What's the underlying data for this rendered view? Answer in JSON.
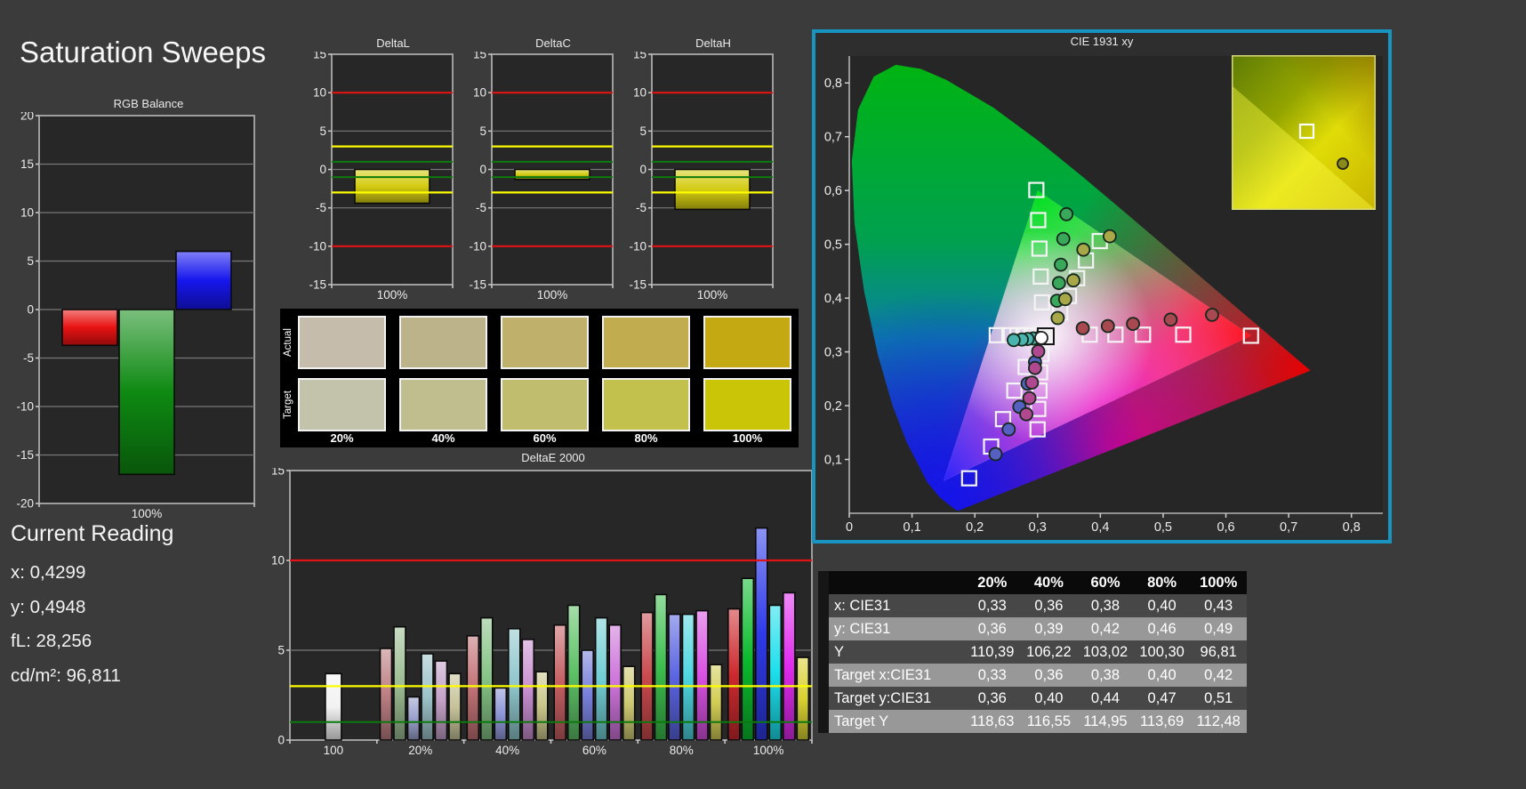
{
  "page": {
    "title": "Saturation Sweeps"
  },
  "current_reading": {
    "title": "Current Reading",
    "lines": [
      {
        "label": "x:",
        "value": "0,4299"
      },
      {
        "label": "y:",
        "value": "0,4948"
      },
      {
        "label": "fL:",
        "value": "28,256"
      },
      {
        "label": "cd/m²:",
        "value": "96,811"
      }
    ]
  },
  "colors": {
    "page_bg": "#3b3b3b",
    "plot_bg": "#272727",
    "plot_border": "#9e9e9e",
    "grid": "#787878",
    "ref_red": "#e01414",
    "ref_yellow": "#fdfd00",
    "ref_green": "#0c7a0c",
    "accent_frame": "#1795c0",
    "panel_black": "#000000"
  },
  "swatches": {
    "row_labels": [
      "Actual",
      "Target"
    ],
    "percent_labels": [
      "20%",
      "40%",
      "60%",
      "80%",
      "100%"
    ],
    "actual": [
      "#c5bcab",
      "#bdb38b",
      "#bfb16c",
      "#c1ad4f",
      "#c4a913"
    ],
    "target": [
      "#c3c3ac",
      "#c0bd8e",
      "#c0bd6f",
      "#c3c14e",
      "#cbc508"
    ]
  },
  "chart_data": [
    {
      "id": "rgb_balance",
      "type": "bar",
      "title": "RGB Balance",
      "ylim": [
        -20,
        20
      ],
      "yticks": [
        20,
        15,
        10,
        5,
        0,
        -5,
        -10,
        -15,
        -20
      ],
      "categories": [
        "100%"
      ],
      "series": [
        {
          "name": "Red",
          "color": "#e81212",
          "values": [
            -3.7
          ]
        },
        {
          "name": "Green",
          "color": "#0e8a12",
          "values": [
            -17
          ]
        },
        {
          "name": "Blue",
          "color": "#1616ee",
          "values": [
            6
          ]
        }
      ]
    },
    {
      "id": "delta_l",
      "type": "bar",
      "title": "DeltaL",
      "ylim": [
        -15,
        15
      ],
      "yticks": [
        15,
        10,
        5,
        0,
        -5,
        -10,
        -15
      ],
      "ref_lines": [
        {
          "v": 10,
          "color": "#e01414"
        },
        {
          "v": -10,
          "color": "#e01414"
        },
        {
          "v": 3,
          "color": "#fdfd00"
        },
        {
          "v": -3,
          "color": "#fdfd00"
        },
        {
          "v": 1,
          "color": "#0c7a0c"
        },
        {
          "v": -1,
          "color": "#0c7a0c"
        }
      ],
      "categories": [
        "100%"
      ],
      "bar_color": "#d4cc12",
      "values": [
        -4.4
      ]
    },
    {
      "id": "delta_c",
      "type": "bar",
      "title": "DeltaC",
      "ylim": [
        -15,
        15
      ],
      "yticks": [
        15,
        10,
        5,
        0,
        -5,
        -10,
        -15
      ],
      "ref_lines": [
        {
          "v": 10,
          "color": "#e01414"
        },
        {
          "v": -10,
          "color": "#e01414"
        },
        {
          "v": 3,
          "color": "#fdfd00"
        },
        {
          "v": -3,
          "color": "#fdfd00"
        },
        {
          "v": 1,
          "color": "#0c7a0c"
        },
        {
          "v": -1,
          "color": "#0c7a0c"
        }
      ],
      "categories": [
        "100%"
      ],
      "bar_color": "#d4cc12",
      "values": [
        -1.3
      ]
    },
    {
      "id": "delta_h",
      "type": "bar",
      "title": "DeltaH",
      "ylim": [
        -15,
        15
      ],
      "yticks": [
        15,
        10,
        5,
        0,
        -5,
        -10,
        -15
      ],
      "ref_lines": [
        {
          "v": 10,
          "color": "#e01414"
        },
        {
          "v": -10,
          "color": "#e01414"
        },
        {
          "v": 3,
          "color": "#fdfd00"
        },
        {
          "v": -3,
          "color": "#fdfd00"
        },
        {
          "v": 1,
          "color": "#0c7a0c"
        },
        {
          "v": -1,
          "color": "#0c7a0c"
        }
      ],
      "categories": [
        "100%"
      ],
      "bar_color": "#d4cc12",
      "values": [
        -5.2
      ]
    },
    {
      "id": "deltae2000",
      "type": "bar",
      "title": "DeltaE 2000",
      "ylim": [
        0,
        15
      ],
      "yticks": [
        15,
        10,
        5,
        0
      ],
      "ref_lines": [
        {
          "v": 10,
          "color": "#e01414"
        },
        {
          "v": 3,
          "color": "#fdfd00"
        },
        {
          "v": 1,
          "color": "#0c7a0c"
        }
      ],
      "groups": [
        {
          "label": "100",
          "bars": [
            {
              "color": "#f2f2f2",
              "value": 3.7
            }
          ]
        },
        {
          "label": "20%",
          "bars": [
            {
              "color": "#bd8084",
              "value": 5.1
            },
            {
              "color": "#9dbd93",
              "value": 6.3
            },
            {
              "color": "#9aa0cc",
              "value": 2.4
            },
            {
              "color": "#9cc3c9",
              "value": 4.8
            },
            {
              "color": "#c3a0c6",
              "value": 4.4
            },
            {
              "color": "#c6c39a",
              "value": 3.7
            }
          ]
        },
        {
          "label": "40%",
          "bars": [
            {
              "color": "#c17276",
              "value": 5.8
            },
            {
              "color": "#85c285",
              "value": 6.8
            },
            {
              "color": "#8e96d6",
              "value": 2.9
            },
            {
              "color": "#8fc6cc",
              "value": 6.2
            },
            {
              "color": "#c88fd0",
              "value": 5.6
            },
            {
              "color": "#c9c68b",
              "value": 3.8
            }
          ]
        },
        {
          "label": "60%",
          "bars": [
            {
              "color": "#c55f63",
              "value": 6.4
            },
            {
              "color": "#5dc167",
              "value": 7.5
            },
            {
              "color": "#7780da",
              "value": 5.0
            },
            {
              "color": "#72cdd4",
              "value": 6.8
            },
            {
              "color": "#cd74da",
              "value": 6.4
            },
            {
              "color": "#cdc972",
              "value": 4.1
            }
          ]
        },
        {
          "label": "80%",
          "bars": [
            {
              "color": "#c94a4e",
              "value": 7.1
            },
            {
              "color": "#3cbf4e",
              "value": 8.1
            },
            {
              "color": "#5a64e0",
              "value": 7.0
            },
            {
              "color": "#4ed6e0",
              "value": 7.0
            },
            {
              "color": "#d851e2",
              "value": 7.2
            },
            {
              "color": "#d2cd55",
              "value": 4.2
            }
          ]
        },
        {
          "label": "100%",
          "bars": [
            {
              "color": "#cc2a2e",
              "value": 7.3
            },
            {
              "color": "#0cbb2e",
              "value": 9.0
            },
            {
              "color": "#2e3ae8",
              "value": 11.8
            },
            {
              "color": "#1cdfec",
              "value": 7.5
            },
            {
              "color": "#e02aee",
              "value": 8.2
            },
            {
              "color": "#d8d232",
              "value": 4.6
            }
          ]
        }
      ]
    },
    {
      "id": "cie1931",
      "type": "scatter",
      "title": "CIE 1931 xy",
      "x_ticks": [
        "0",
        "0,1",
        "0,2",
        "0,3",
        "0,4",
        "0,5",
        "0,6",
        "0,7",
        "0,8"
      ],
      "y_ticks": [
        "0,1",
        "0,2",
        "0,3",
        "0,4",
        "0,5",
        "0,6",
        "0,7",
        "0,8"
      ],
      "gamut_triangle": [
        [
          0.64,
          0.33
        ],
        [
          0.3,
          0.6
        ],
        [
          0.15,
          0.06
        ]
      ],
      "white_point": {
        "target": [
          0.313,
          0.329
        ],
        "measured": [
          0.306,
          0.326
        ]
      },
      "targets": {
        "red": [
          [
            0.383,
            0.332
          ],
          [
            0.424,
            0.332
          ],
          [
            0.468,
            0.332
          ],
          [
            0.532,
            0.332
          ],
          [
            0.64,
            0.33
          ]
        ],
        "green": [
          [
            0.307,
            0.392
          ],
          [
            0.305,
            0.44
          ],
          [
            0.303,
            0.492
          ],
          [
            0.301,
            0.545
          ],
          [
            0.298,
            0.601
          ]
        ],
        "blue": [
          [
            0.281,
            0.272
          ],
          [
            0.263,
            0.228
          ],
          [
            0.245,
            0.175
          ],
          [
            0.226,
            0.124
          ],
          [
            0.191,
            0.065
          ]
        ],
        "cyan": [
          [
            0.294,
            0.331
          ],
          [
            0.281,
            0.331
          ],
          [
            0.268,
            0.331
          ],
          [
            0.255,
            0.331
          ],
          [
            0.235,
            0.331
          ]
        ],
        "magenta": [
          [
            0.306,
            0.296
          ],
          [
            0.304,
            0.262
          ],
          [
            0.303,
            0.228
          ],
          [
            0.301,
            0.194
          ],
          [
            0.3,
            0.156
          ]
        ],
        "yellow": [
          [
            0.336,
            0.373
          ],
          [
            0.35,
            0.404
          ],
          [
            0.363,
            0.437
          ],
          [
            0.377,
            0.47
          ],
          [
            0.399,
            0.506
          ]
        ]
      },
      "measurements": {
        "red": {
          "color": "#a84850",
          "points": [
            [
              0.372,
              0.344
            ],
            [
              0.412,
              0.348
            ],
            [
              0.452,
              0.352
            ],
            [
              0.512,
              0.36
            ],
            [
              0.578,
              0.369
            ]
          ]
        },
        "green": {
          "color": "#3aa85a",
          "points": [
            [
              0.331,
              0.395
            ],
            [
              0.334,
              0.428
            ],
            [
              0.337,
              0.462
            ],
            [
              0.341,
              0.51
            ],
            [
              0.346,
              0.556
            ]
          ]
        },
        "blue": {
          "color": "#5560c0",
          "points": [
            [
              0.296,
              0.281
            ],
            [
              0.284,
              0.241
            ],
            [
              0.271,
              0.198
            ],
            [
              0.254,
              0.156
            ],
            [
              0.233,
              0.11
            ]
          ]
        },
        "cyan": {
          "color": "#4cb4ae",
          "points": [
            [
              0.302,
              0.326
            ],
            [
              0.293,
              0.325
            ],
            [
              0.284,
              0.324
            ],
            [
              0.275,
              0.323
            ],
            [
              0.262,
              0.322
            ]
          ]
        },
        "magenta": {
          "color": "#b04890",
          "points": [
            [
              0.301,
              0.301
            ],
            [
              0.296,
              0.27
            ],
            [
              0.291,
              0.243
            ],
            [
              0.287,
              0.214
            ],
            [
              0.282,
              0.184
            ]
          ]
        },
        "yellow": {
          "color": "#a8a848",
          "points": [
            [
              0.332,
              0.363
            ],
            [
              0.344,
              0.398
            ],
            [
              0.357,
              0.433
            ],
            [
              0.373,
              0.49
            ],
            [
              0.415,
              0.515
            ]
          ]
        }
      }
    },
    {
      "id": "sat_table",
      "type": "table",
      "columns": [
        "",
        "20%",
        "40%",
        "60%",
        "80%",
        "100%"
      ],
      "rows": [
        {
          "label": "x: CIE31",
          "values": [
            "0,33",
            "0,36",
            "0,38",
            "0,40",
            "0,43"
          ]
        },
        {
          "label": "y: CIE31",
          "values": [
            "0,36",
            "0,39",
            "0,42",
            "0,46",
            "0,49"
          ]
        },
        {
          "label": "Y",
          "values": [
            "110,39",
            "106,22",
            "103,02",
            "100,30",
            "96,81"
          ]
        },
        {
          "label": "Target x:CIE31",
          "values": [
            "0,33",
            "0,36",
            "0,38",
            "0,40",
            "0,42"
          ]
        },
        {
          "label": "Target y:CIE31",
          "values": [
            "0,36",
            "0,40",
            "0,44",
            "0,47",
            "0,51"
          ]
        },
        {
          "label": "Target Y",
          "values": [
            "118,63",
            "116,55",
            "114,95",
            "113,69",
            "112,48"
          ]
        }
      ]
    }
  ]
}
